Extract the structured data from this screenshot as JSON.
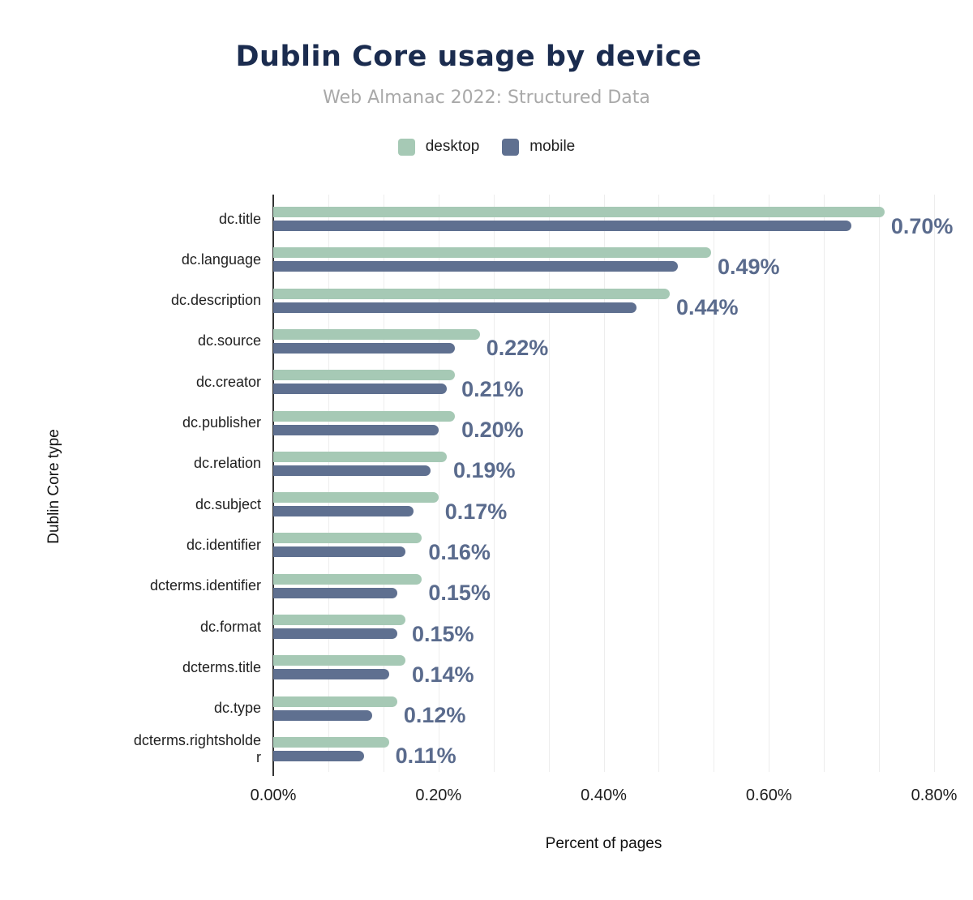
{
  "header": {
    "title": "Dublin Core usage by device",
    "subtitle": "Web Almanac 2022: Structured Data"
  },
  "chart_data": {
    "type": "bar",
    "orientation": "horizontal",
    "title": "Dublin Core usage by device",
    "subtitle": "Web Almanac 2022: Structured Data",
    "xlabel": "Percent of pages",
    "ylabel": "Dublin Core type",
    "xlim": [
      0,
      0.8
    ],
    "xtick_values": [
      0,
      0.2,
      0.4,
      0.6,
      0.8
    ],
    "xtick_labels": [
      "0.00%",
      "0.20%",
      "0.40%",
      "0.60%",
      "0.80%"
    ],
    "grid": "vertical minor gridlines, 3 per 0.20% interval",
    "legend_position": "top",
    "categories": [
      "dc.title",
      "dc.language",
      "dc.description",
      "dc.source",
      "dc.creator",
      "dc.publisher",
      "dc.relation",
      "dc.subject",
      "dc.identifier",
      "dcterms.identifier",
      "dc.format",
      "dcterms.title",
      "dc.type",
      "dcterms.rightsholder"
    ],
    "series": [
      {
        "name": "desktop",
        "color": "#a6c9b5",
        "values": [
          0.74,
          0.53,
          0.48,
          0.25,
          0.22,
          0.22,
          0.21,
          0.2,
          0.18,
          0.18,
          0.16,
          0.16,
          0.15,
          0.14
        ]
      },
      {
        "name": "mobile",
        "color": "#5f7090",
        "values": [
          0.7,
          0.49,
          0.44,
          0.22,
          0.21,
          0.2,
          0.19,
          0.17,
          0.16,
          0.15,
          0.15,
          0.14,
          0.12,
          0.11
        ]
      }
    ],
    "value_labels": [
      "0.70%",
      "0.49%",
      "0.44%",
      "0.22%",
      "0.21%",
      "0.20%",
      "0.19%",
      "0.17%",
      "0.16%",
      "0.15%",
      "0.15%",
      "0.14%",
      "0.12%",
      "0.11%"
    ],
    "value_labels_series": "mobile"
  },
  "colors": {
    "desktop_bar": "#a6c9b5",
    "mobile_bar": "#5f7090",
    "value_label": "#5a6b8d",
    "title": "#1b2c4f",
    "subtitle": "#a9a9a9",
    "axis_line": "#333333",
    "gridline": "#ededed",
    "text": "#1c1c1c",
    "background": "#ffffff"
  }
}
